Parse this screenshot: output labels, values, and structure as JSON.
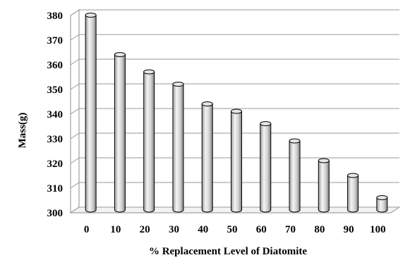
{
  "chart_data": {
    "type": "bar",
    "style": "3d-cylinder",
    "title": "",
    "xlabel": "% Replacement Level of Diatomite",
    "ylabel": "Mass(g)",
    "categories": [
      "0",
      "10",
      "20",
      "30",
      "40",
      "50",
      "60",
      "70",
      "80",
      "90",
      "100"
    ],
    "values": [
      379,
      363,
      356,
      351,
      343,
      340,
      335,
      328,
      320,
      314,
      305
    ],
    "ylim": [
      300,
      380
    ],
    "yticks": [
      "300",
      "310",
      "320",
      "330",
      "340",
      "350",
      "360",
      "370",
      "380"
    ],
    "grid": true,
    "legend": "none",
    "colors": {
      "bar_light": "#ffffff",
      "bar_mid": "#d9d9d9",
      "bar_dark": "#8c8c8c",
      "bar_outline": "#000000",
      "grid": "#9a9a9a"
    }
  }
}
